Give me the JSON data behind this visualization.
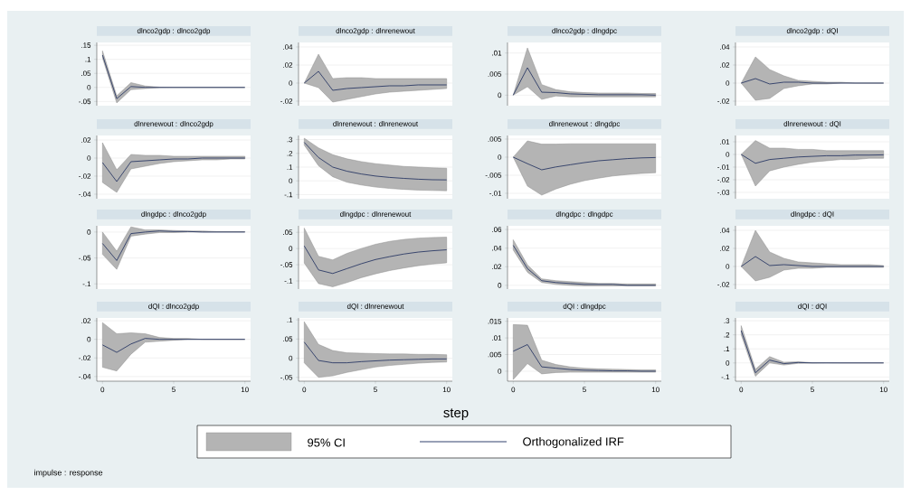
{
  "chart_data": [
    {
      "type": "line",
      "title": "dlnco2gdp : dlnco2gdp",
      "x": [
        0,
        1,
        2,
        3,
        4,
        5,
        6,
        7,
        8,
        9,
        10
      ],
      "xlim": [
        -0.4,
        10.4
      ],
      "ylim": [
        -0.065,
        0.16
      ],
      "yticks": [
        {
          "value": -0.05,
          "label": "-.05"
        },
        0,
        {
          "value": 0.05,
          "label": ".05"
        },
        {
          "value": 0.1,
          "label": ".1"
        },
        {
          "value": 0.15,
          "label": ".15"
        }
      ],
      "grid": "y",
      "tick_labels": "y",
      "series": [
        {
          "color": "#1a2b5c",
          "values": [
            0.115,
            -0.04,
            0.003,
            0.0,
            0,
            0,
            0,
            0,
            0,
            0,
            0
          ],
          "lower": [
            0.105,
            -0.055,
            -0.008,
            -0.004,
            -0.001,
            0,
            0,
            0,
            0,
            0,
            0
          ],
          "upper": [
            0.13,
            -0.03,
            0.017,
            0.005,
            0.001,
            0,
            0,
            0,
            0,
            0,
            0
          ]
        }
      ]
    },
    {
      "type": "line",
      "title": "dlnco2gdp : dlnrenewout",
      "x": [
        0,
        1,
        2,
        3,
        4,
        5,
        6,
        7,
        8,
        9,
        10
      ],
      "xlim": [
        -0.4,
        10.4
      ],
      "ylim": [
        -0.025,
        0.045
      ],
      "yticks": [
        {
          "value": -0.02,
          "label": "-.02"
        },
        0,
        {
          "value": 0.02,
          "label": ".02"
        },
        {
          "value": 0.04,
          "label": ".04"
        }
      ],
      "grid": "y",
      "tick_labels": "y",
      "series": [
        {
          "color": "#1a2b5c",
          "values": [
            0,
            0.013,
            -0.008,
            -0.006,
            -0.005,
            -0.004,
            -0.003,
            -0.003,
            -0.002,
            -0.002,
            -0.002
          ],
          "lower": [
            0,
            -0.005,
            -0.021,
            -0.018,
            -0.015,
            -0.012,
            -0.01,
            -0.009,
            -0.008,
            -0.007,
            -0.006
          ],
          "upper": [
            0,
            0.032,
            0.005,
            0.006,
            0.006,
            0.005,
            0.005,
            0.005,
            0.005,
            0.005,
            0.005
          ]
        }
      ]
    },
    {
      "type": "line",
      "title": "dlnco2gdp : dlngdpc",
      "x": [
        0,
        1,
        2,
        3,
        4,
        5,
        6,
        7,
        8,
        9,
        10
      ],
      "xlim": [
        -0.4,
        10.4
      ],
      "ylim": [
        -0.0025,
        0.0125
      ],
      "yticks": [
        0,
        {
          "value": 0.005,
          "label": ".005"
        },
        {
          "value": 0.01,
          "label": ".01"
        }
      ],
      "grid": "y",
      "tick_labels": "y",
      "series": [
        {
          "color": "#1a2b5c",
          "values": [
            0,
            0.0065,
            0.0007,
            0.0006,
            0.0003,
            0.0002,
            0.0001,
            0.0001,
            0.0001,
            0.0001,
            0
          ],
          "lower": [
            0,
            0.002,
            -0.001,
            -0.0002,
            -0.0004,
            -0.0004,
            -0.0004,
            -0.0004,
            -0.0004,
            -0.0004,
            -0.0004
          ],
          "upper": [
            0,
            0.0112,
            0.0025,
            0.0013,
            0.0008,
            0.0006,
            0.0005,
            0.0005,
            0.0005,
            0.0004,
            0.0004
          ]
        }
      ]
    },
    {
      "type": "line",
      "title": "dlnco2gdp : dQI",
      "x": [
        0,
        1,
        2,
        3,
        4,
        5,
        6,
        7,
        8,
        9,
        10
      ],
      "xlim": [
        -0.4,
        10.4
      ],
      "ylim": [
        -0.025,
        0.045
      ],
      "yticks": [
        {
          "value": -0.02,
          "label": "-.02"
        },
        0,
        {
          "value": 0.02,
          "label": ".02"
        },
        {
          "value": 0.04,
          "label": ".04"
        }
      ],
      "grid": "y",
      "tick_labels": "y",
      "series": [
        {
          "color": "#1a2b5c",
          "values": [
            0,
            0.005,
            -0.001,
            0.001,
            0.001,
            0,
            0,
            0,
            0,
            0,
            0
          ],
          "lower": [
            0,
            -0.019,
            -0.017,
            -0.006,
            -0.003,
            -0.001,
            -0.001,
            0,
            0,
            0,
            0
          ],
          "upper": [
            0,
            0.029,
            0.015,
            0.008,
            0.003,
            0.002,
            0.001,
            0.001,
            0,
            0,
            0
          ]
        }
      ]
    },
    {
      "type": "line",
      "title": "dlnrenewout : dlnco2gdp",
      "x": [
        0,
        1,
        2,
        3,
        4,
        5,
        6,
        7,
        8,
        9,
        10
      ],
      "xlim": [
        -0.4,
        10.4
      ],
      "ylim": [
        -0.045,
        0.025
      ],
      "yticks": [
        {
          "value": -0.04,
          "label": "-.04"
        },
        {
          "value": -0.02,
          "label": "-.02"
        },
        0,
        {
          "value": 0.02,
          "label": ".02"
        }
      ],
      "grid": "y",
      "tick_labels": "y",
      "series": [
        {
          "color": "#1a2b5c",
          "values": [
            -0.005,
            -0.026,
            -0.004,
            -0.003,
            -0.002,
            -0.001,
            -0.001,
            0,
            0,
            0,
            0
          ],
          "lower": [
            -0.027,
            -0.038,
            -0.012,
            -0.009,
            -0.006,
            -0.004,
            -0.003,
            -0.002,
            -0.002,
            -0.001,
            -0.001
          ],
          "upper": [
            0.017,
            -0.013,
            0.004,
            0.003,
            0.003,
            0.002,
            0.002,
            0.002,
            0.002,
            0.002,
            0.002
          ]
        }
      ]
    },
    {
      "type": "line",
      "title": "dlnrenewout : dlnrenewout",
      "x": [
        0,
        1,
        2,
        3,
        4,
        5,
        6,
        7,
        8,
        9,
        10
      ],
      "xlim": [
        -0.4,
        10.4
      ],
      "ylim": [
        -0.13,
        0.33
      ],
      "yticks": [
        {
          "value": -0.1,
          "label": "-.1"
        },
        0,
        {
          "value": 0.1,
          "label": ".1"
        },
        {
          "value": 0.2,
          "label": ".2"
        },
        {
          "value": 0.3,
          "label": ".3"
        }
      ],
      "grid": "y",
      "tick_labels": "y",
      "series": [
        {
          "color": "#1a2b5c",
          "values": [
            0.28,
            0.17,
            0.1,
            0.07,
            0.05,
            0.035,
            0.025,
            0.018,
            0.012,
            0.008,
            0.007
          ],
          "lower": [
            0.26,
            0.11,
            0.03,
            -0.01,
            -0.03,
            -0.045,
            -0.055,
            -0.062,
            -0.067,
            -0.07,
            -0.072
          ],
          "upper": [
            0.31,
            0.24,
            0.19,
            0.16,
            0.14,
            0.125,
            0.115,
            0.105,
            0.1,
            0.095,
            0.092
          ]
        }
      ]
    },
    {
      "type": "line",
      "title": "dlnrenewout : dlngdpc",
      "x": [
        0,
        1,
        2,
        3,
        4,
        5,
        6,
        7,
        8,
        9,
        10
      ],
      "xlim": [
        -0.4,
        10.4
      ],
      "ylim": [
        -0.0115,
        0.006
      ],
      "yticks": [
        {
          "value": -0.01,
          "label": "-.01"
        },
        {
          "value": -0.005,
          "label": "-.005"
        },
        0,
        {
          "value": 0.005,
          "label": ".005"
        }
      ],
      "grid": "y",
      "tick_labels": "y",
      "series": [
        {
          "color": "#1a2b5c",
          "values": [
            0,
            -0.0018,
            -0.0035,
            -0.0027,
            -0.0021,
            -0.0015,
            -0.001,
            -0.0007,
            -0.0004,
            -0.0002,
            -0.0001
          ],
          "lower": [
            0,
            -0.008,
            -0.0105,
            -0.0088,
            -0.0075,
            -0.0065,
            -0.0058,
            -0.0052,
            -0.0048,
            -0.0045,
            -0.0043
          ],
          "upper": [
            0,
            0.0045,
            0.0036,
            0.0036,
            0.0037,
            0.0037,
            0.0037,
            0.0037,
            0.0037,
            0.0037,
            0.0037
          ]
        }
      ]
    },
    {
      "type": "line",
      "title": "dlnrenewout : dQI",
      "x": [
        0,
        1,
        2,
        3,
        4,
        5,
        6,
        7,
        8,
        9,
        10
      ],
      "xlim": [
        -0.4,
        10.4
      ],
      "ylim": [
        -0.035,
        0.015
      ],
      "yticks": [
        {
          "value": -0.03,
          "label": "-.03"
        },
        {
          "value": -0.02,
          "label": "-.02"
        },
        {
          "value": -0.01,
          "label": "-.01"
        },
        0,
        {
          "value": 0.01,
          "label": ".01"
        }
      ],
      "grid": "y",
      "tick_labels": "y",
      "series": [
        {
          "color": "#1a2b5c",
          "values": [
            0,
            -0.007,
            -0.004,
            -0.003,
            -0.002,
            -0.0015,
            -0.001,
            -0.001,
            -0.0005,
            -0.0005,
            -0.0003
          ],
          "lower": [
            0,
            -0.025,
            -0.013,
            -0.01,
            -0.0078,
            -0.006,
            -0.005,
            -0.004,
            -0.004,
            -0.003,
            -0.003
          ],
          "upper": [
            0,
            0.011,
            0.005,
            0.005,
            0.004,
            0.004,
            0.003,
            0.003,
            0.003,
            0.003,
            0.003
          ]
        }
      ]
    },
    {
      "type": "line",
      "title": "dlngdpc : dlnco2gdp",
      "x": [
        0,
        1,
        2,
        3,
        4,
        5,
        6,
        7,
        8,
        9,
        10
      ],
      "xlim": [
        -0.4,
        10.4
      ],
      "ylim": [
        -0.11,
        0.012
      ],
      "yticks": [
        {
          "value": -0.1,
          "label": "-.1"
        },
        {
          "value": -0.05,
          "label": "-.05"
        },
        0
      ],
      "grid": "y",
      "tick_labels": "y",
      "series": [
        {
          "color": "#1a2b5c",
          "values": [
            -0.022,
            -0.055,
            -0.003,
            0,
            0.002,
            0.001,
            0.001,
            0,
            0,
            0,
            0
          ],
          "lower": [
            -0.043,
            -0.072,
            -0.008,
            -0.004,
            -0.001,
            -0.001,
            0,
            0,
            0,
            0,
            0
          ],
          "upper": [
            0,
            -0.037,
            0.01,
            0.004,
            0.004,
            0.003,
            0.002,
            0.002,
            0.001,
            0.001,
            0.001
          ]
        }
      ]
    },
    {
      "type": "line",
      "title": "dlngdpc : dlnrenewout",
      "x": [
        0,
        1,
        2,
        3,
        4,
        5,
        6,
        7,
        8,
        9,
        10
      ],
      "xlim": [
        -0.4,
        10.4
      ],
      "ylim": [
        -0.125,
        0.07
      ],
      "yticks": [
        {
          "value": -0.1,
          "label": "-.1"
        },
        {
          "value": -0.05,
          "label": "-.05"
        },
        0,
        {
          "value": 0.05,
          "label": ".05"
        }
      ],
      "grid": "y",
      "tick_labels": "y",
      "series": [
        {
          "color": "#1a2b5c",
          "values": [
            0.008,
            -0.066,
            -0.077,
            -0.062,
            -0.047,
            -0.034,
            -0.025,
            -0.017,
            -0.011,
            -0.007,
            -0.004
          ],
          "lower": [
            -0.045,
            -0.108,
            -0.118,
            -0.105,
            -0.09,
            -0.078,
            -0.068,
            -0.06,
            -0.053,
            -0.048,
            -0.044
          ],
          "upper": [
            0.063,
            -0.024,
            -0.035,
            -0.015,
            0,
            0.013,
            0.022,
            0.028,
            0.032,
            0.034,
            0.035
          ]
        }
      ]
    },
    {
      "type": "line",
      "title": "dlngdpc : dlngdpc",
      "x": [
        0,
        1,
        2,
        3,
        4,
        5,
        6,
        7,
        8,
        9,
        10
      ],
      "xlim": [
        -0.4,
        10.4
      ],
      "ylim": [
        -0.004,
        0.064
      ],
      "yticks": [
        0,
        {
          "value": 0.02,
          "label": ".02"
        },
        {
          "value": 0.04,
          "label": ".04"
        },
        {
          "value": 0.06,
          "label": ".06"
        }
      ],
      "grid": "y",
      "tick_labels": "y",
      "series": [
        {
          "color": "#1a2b5c",
          "values": [
            0.043,
            0.018,
            0.005,
            0.003,
            0.002,
            0.001,
            0.001,
            0.001,
            0,
            0,
            0
          ],
          "lower": [
            0.038,
            0.014,
            0.003,
            0.001,
            0,
            -0.0005,
            -0.0005,
            -0.0005,
            -0.0005,
            -0.0005,
            -0.0005
          ],
          "upper": [
            0.049,
            0.022,
            0.007,
            0.005,
            0.004,
            0.003,
            0.002,
            0.002,
            0.0015,
            0.0015,
            0.0015
          ]
        }
      ]
    },
    {
      "type": "line",
      "title": "dlngdpc : dQI",
      "x": [
        0,
        1,
        2,
        3,
        4,
        5,
        6,
        7,
        8,
        9,
        10
      ],
      "xlim": [
        -0.4,
        10.4
      ],
      "ylim": [
        -0.025,
        0.045
      ],
      "yticks": [
        {
          "value": -0.02,
          "label": "-.02"
        },
        0,
        {
          "value": 0.02,
          "label": ".02"
        },
        {
          "value": 0.04,
          "label": ".04"
        }
      ],
      "grid": "y",
      "tick_labels": "y",
      "series": [
        {
          "color": "#1a2b5c",
          "values": [
            0,
            0.011,
            0.001,
            0.002,
            0.001,
            0,
            0,
            0,
            0,
            0,
            0
          ],
          "lower": [
            0,
            -0.016,
            -0.012,
            -0.004,
            -0.002,
            -0.002,
            -0.001,
            -0.001,
            -0.001,
            -0.001,
            -0.001
          ],
          "upper": [
            0,
            0.04,
            0.016,
            0.009,
            0.005,
            0.004,
            0.003,
            0.002,
            0.002,
            0.002,
            0.001
          ]
        }
      ]
    },
    {
      "type": "line",
      "title": "dQI : dlnco2gdp",
      "x": [
        0,
        1,
        2,
        3,
        4,
        5,
        6,
        7,
        8,
        9,
        10
      ],
      "xlim": [
        -0.4,
        10.4
      ],
      "xticks": [
        0,
        5,
        10
      ],
      "ylim": [
        -0.045,
        0.023
      ],
      "yticks": [
        {
          "value": -0.04,
          "label": "-.04"
        },
        {
          "value": -0.02,
          "label": "-.02"
        },
        0,
        {
          "value": 0.02,
          "label": ".02"
        }
      ],
      "grid": "y",
      "series": [
        {
          "color": "#1a2b5c",
          "values": [
            -0.006,
            -0.014,
            -0.005,
            0.001,
            0,
            0,
            0,
            0,
            0,
            0,
            0
          ],
          "lower": [
            -0.03,
            -0.034,
            -0.016,
            -0.003,
            -0.002,
            -0.001,
            0,
            0,
            0,
            0,
            0
          ],
          "upper": [
            0.018,
            0.006,
            0.007,
            0.006,
            0.002,
            0.001,
            0.001,
            0,
            0,
            0,
            0
          ]
        }
      ]
    },
    {
      "type": "line",
      "title": "dQI : dlnrenewout",
      "x": [
        0,
        1,
        2,
        3,
        4,
        5,
        6,
        7,
        8,
        9,
        10
      ],
      "xlim": [
        -0.4,
        10.4
      ],
      "xticks": [
        0,
        5,
        10
      ],
      "ylim": [
        -0.06,
        0.105
      ],
      "yticks": [
        {
          "value": -0.05,
          "label": "-.05"
        },
        0,
        {
          "value": 0.05,
          "label": ".05"
        },
        {
          "value": 0.1,
          "label": ".1"
        }
      ],
      "grid": "y",
      "series": [
        {
          "color": "#1a2b5c",
          "values": [
            0.042,
            -0.006,
            -0.012,
            -0.012,
            -0.009,
            -0.007,
            -0.005,
            -0.004,
            -0.003,
            -0.002,
            -0.002
          ],
          "lower": [
            -0.012,
            -0.05,
            -0.046,
            -0.037,
            -0.03,
            -0.023,
            -0.019,
            -0.016,
            -0.013,
            -0.011,
            -0.01
          ],
          "upper": [
            0.095,
            0.036,
            0.02,
            0.014,
            0.013,
            0.012,
            0.011,
            0.011,
            0.01,
            0.01,
            0.009
          ]
        }
      ]
    },
    {
      "type": "line",
      "title": "dQI : dlngdpc",
      "x": [
        0,
        1,
        2,
        3,
        4,
        5,
        6,
        7,
        8,
        9,
        10
      ],
      "xlim": [
        -0.4,
        10.4
      ],
      "xticks": [
        0,
        5,
        10
      ],
      "ylim": [
        -0.003,
        0.016
      ],
      "yticks": [
        0,
        {
          "value": 0.005,
          "label": ".005"
        },
        {
          "value": 0.01,
          "label": ".01"
        },
        {
          "value": 0.015,
          "label": ".015"
        }
      ],
      "grid": "y",
      "series": [
        {
          "color": "#1a2b5c",
          "values": [
            0.006,
            0.008,
            0.0013,
            0.0009,
            0.0005,
            0.0003,
            0.0002,
            0.0001,
            0.0001,
            0,
            0
          ],
          "lower": [
            -0.0025,
            0.0023,
            -0.0008,
            -0.0004,
            -0.0003,
            -0.0003,
            -0.0003,
            -0.0003,
            -0.0003,
            -0.0003,
            -0.0003
          ],
          "upper": [
            0.014,
            0.0138,
            0.0033,
            0.002,
            0.0013,
            0.0009,
            0.0007,
            0.0006,
            0.0005,
            0.0004,
            0.0004
          ]
        }
      ]
    },
    {
      "type": "line",
      "title": "dQI : dQI",
      "x": [
        0,
        1,
        2,
        3,
        4,
        5,
        6,
        7,
        8,
        9,
        10
      ],
      "xlim": [
        -0.4,
        10.4
      ],
      "xticks": [
        0,
        5,
        10
      ],
      "ylim": [
        -0.13,
        0.32
      ],
      "yticks": [
        {
          "value": -0.1,
          "label": "-.1"
        },
        0,
        {
          "value": 0.1,
          "label": ".1"
        },
        {
          "value": 0.2,
          "label": ".2"
        },
        {
          "value": 0.3,
          "label": ".3"
        }
      ],
      "grid": "y",
      "series": [
        {
          "color": "#1a2b5c",
          "values": [
            0.23,
            -0.07,
            0.02,
            -0.005,
            0.003,
            0,
            0,
            0,
            0,
            0,
            0
          ],
          "lower": [
            0.2,
            -0.095,
            0,
            -0.015,
            -0.003,
            -0.002,
            0,
            0,
            0,
            0,
            0
          ],
          "upper": [
            0.265,
            -0.045,
            0.045,
            0.005,
            0.008,
            0.002,
            0.001,
            0,
            0,
            0,
            0
          ]
        }
      ]
    },
    {
      "type": "other",
      "annotations": [
        "step",
        "95% CI",
        "Orthogonalized IRF",
        "impulse : response"
      ]
    }
  ]
}
